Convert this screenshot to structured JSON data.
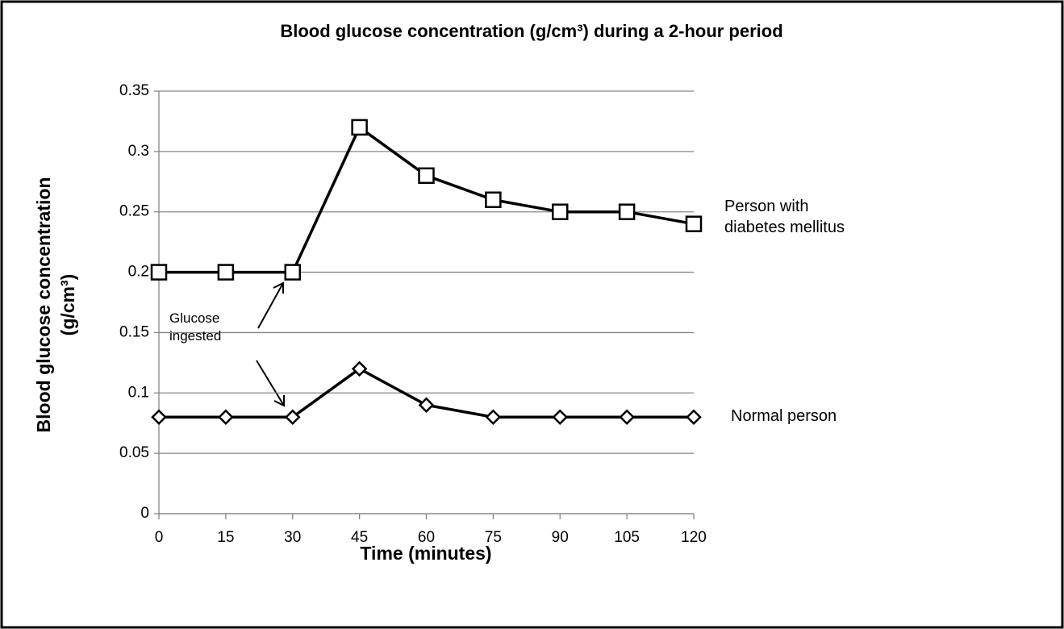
{
  "chart_data": {
    "type": "line",
    "title": "Blood glucose concentration (g/cm³) during a 2-hour period",
    "xlabel": "Time (minutes)",
    "ylabel": [
      "Blood glucose concentration",
      "(g/cm³)"
    ],
    "x": [
      0,
      15,
      30,
      45,
      60,
      75,
      90,
      105,
      120
    ],
    "xlim": [
      0,
      120
    ],
    "xticks": [
      0,
      15,
      30,
      45,
      60,
      75,
      90,
      105,
      120
    ],
    "ylim": [
      0,
      0.35
    ],
    "yticks": [
      0,
      0.05,
      0.1,
      0.15,
      0.2,
      0.25,
      0.3,
      0.35
    ],
    "grid": true,
    "series": [
      {
        "name": "Person with diabetes mellitus",
        "color": "#000000",
        "marker": "square",
        "values": [
          0.2,
          0.2,
          0.2,
          0.32,
          0.28,
          0.26,
          0.25,
          0.25,
          0.24
        ]
      },
      {
        "name": "Normal person",
        "color": "#000000",
        "marker": "diamond",
        "values": [
          0.08,
          0.08,
          0.08,
          0.12,
          0.09,
          0.08,
          0.08,
          0.08,
          0.08
        ]
      }
    ],
    "annotations": [
      "Glucose ingested"
    ]
  }
}
